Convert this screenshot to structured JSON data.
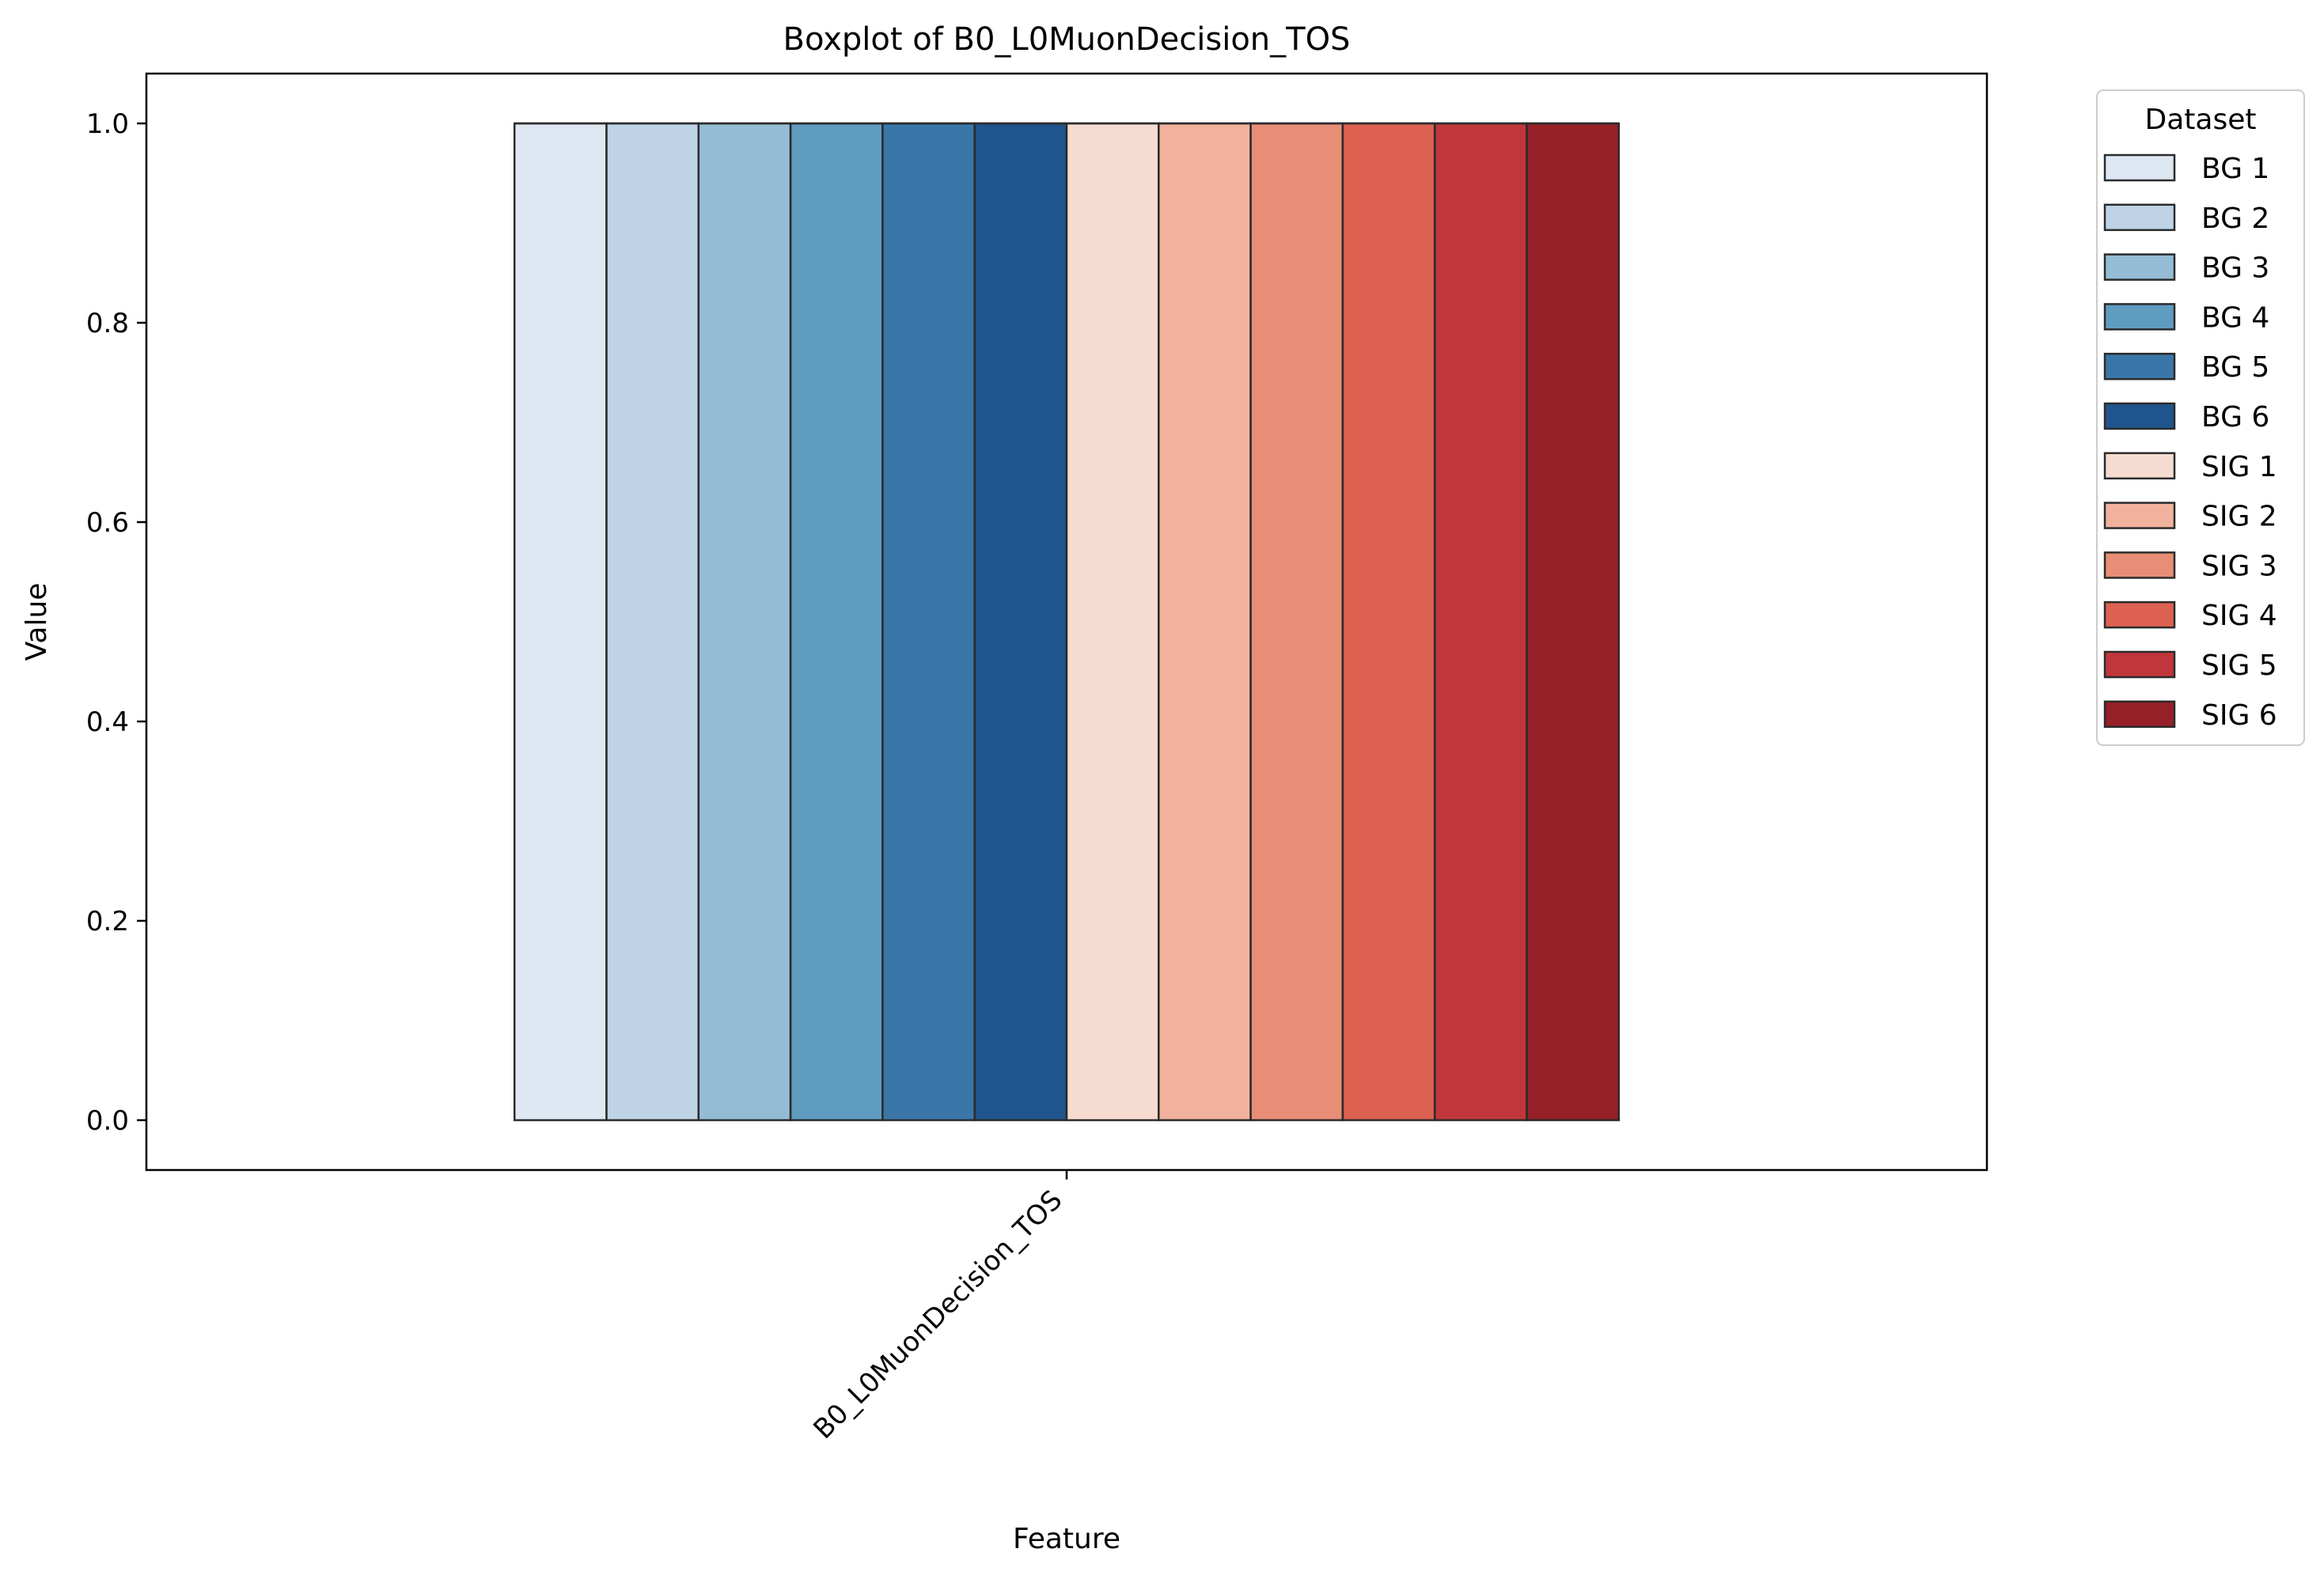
{
  "chart_data": {
    "type": "box",
    "title": "Boxplot of B0_L0MuonDecision_TOS",
    "xlabel": "Feature",
    "ylabel": "Value",
    "ylim": [
      -0.05,
      1.05
    ],
    "yticks": [
      0.0,
      0.2,
      0.4,
      0.6,
      0.8,
      1.0
    ],
    "ytick_labels": [
      "0.0",
      "0.2",
      "0.4",
      "0.6",
      "0.8",
      "1.0"
    ],
    "categories": [
      "B0_L0MuonDecision_TOS"
    ],
    "legend": {
      "title": "Dataset",
      "position": "outside-top-right"
    },
    "grid": false,
    "series": [
      {
        "name": "BG 1",
        "color": "#dde8f3",
        "q1": 0,
        "median": 1,
        "q3": 1,
        "whisker_low": 0,
        "whisker_high": 1
      },
      {
        "name": "BG 2",
        "color": "#bed4e6",
        "q1": 0,
        "median": 1,
        "q3": 1,
        "whisker_low": 0,
        "whisker_high": 1
      },
      {
        "name": "BG 3",
        "color": "#94bcd5",
        "q1": 0,
        "median": 1,
        "q3": 1,
        "whisker_low": 0,
        "whisker_high": 1
      },
      {
        "name": "BG 4",
        "color": "#609bc0",
        "q1": 0,
        "median": 1,
        "q3": 1,
        "whisker_low": 0,
        "whisker_high": 1
      },
      {
        "name": "BG 5",
        "color": "#3a77a8",
        "q1": 0,
        "median": 1,
        "q3": 1,
        "whisker_low": 0,
        "whisker_high": 1
      },
      {
        "name": "BG 6",
        "color": "#1f548c",
        "q1": 0,
        "median": 1,
        "q3": 1,
        "whisker_low": 0,
        "whisker_high": 1
      },
      {
        "name": "SIG 1",
        "color": "#f6dcd0",
        "q1": 0,
        "median": 1,
        "q3": 1,
        "whisker_low": 0,
        "whisker_high": 1
      },
      {
        "name": "SIG 2",
        "color": "#f0b29c",
        "q1": 0,
        "median": 1,
        "q3": 1,
        "whisker_low": 0,
        "whisker_high": 1
      },
      {
        "name": "SIG 3",
        "color": "#e88d76",
        "q1": 0,
        "median": 1,
        "q3": 1,
        "whisker_low": 0,
        "whisker_high": 1
      },
      {
        "name": "SIG 4",
        "color": "#dc6150",
        "q1": 0,
        "median": 1,
        "q3": 1,
        "whisker_low": 0,
        "whisker_high": 1
      },
      {
        "name": "SIG 5",
        "color": "#c0363a",
        "q1": 0,
        "median": 1,
        "q3": 1,
        "whisker_low": 0,
        "whisker_high": 1
      },
      {
        "name": "SIG 6",
        "color": "#952027",
        "q1": 0,
        "median": 1,
        "q3": 1,
        "whisker_low": 0,
        "whisker_high": 1
      }
    ]
  }
}
